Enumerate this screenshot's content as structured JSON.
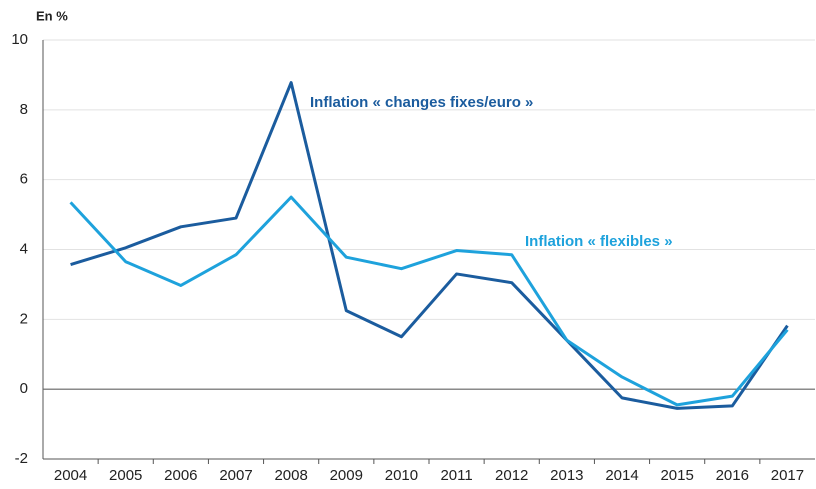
{
  "chart_data": {
    "type": "line",
    "y_label": "En %",
    "categories": [
      "2004",
      "2005",
      "2006",
      "2007",
      "2008",
      "2009",
      "2010",
      "2011",
      "2012",
      "2013",
      "2014",
      "2015",
      "2016",
      "2017"
    ],
    "series": [
      {
        "name": "Inflation « changes fixes/euro »",
        "color": "#1b5c9e",
        "values": [
          3.57,
          4.05,
          4.65,
          4.9,
          8.78,
          2.25,
          1.5,
          3.3,
          3.05,
          1.4,
          -0.25,
          -0.55,
          -0.48,
          1.82
        ]
      },
      {
        "name": "Inflation « flexibles »",
        "color": "#1ea2dc",
        "values": [
          5.35,
          3.65,
          2.97,
          3.85,
          5.5,
          3.78,
          3.45,
          3.97,
          3.85,
          1.4,
          0.35,
          -0.45,
          -0.2,
          1.7
        ]
      }
    ],
    "ylim": [
      -2,
      10
    ],
    "yticks": [
      -2,
      0,
      2,
      4,
      6,
      8,
      10
    ],
    "grid": true
  }
}
